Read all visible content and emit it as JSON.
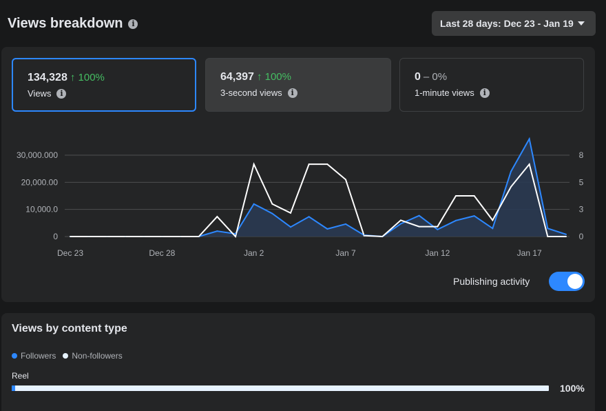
{
  "header": {
    "title": "Views breakdown",
    "date_range": "Last 28 days: Dec 23 - Jan 19"
  },
  "metrics": [
    {
      "value": "134,328",
      "change": "↑ 100%",
      "label": "Views"
    },
    {
      "value": "64,397",
      "change": "↑ 100%",
      "label": "3-second views"
    },
    {
      "value": "0",
      "change": "– 0%",
      "label": "1-minute views"
    }
  ],
  "chart_data": {
    "type": "line",
    "x_tick_labels": [
      "Dec 23",
      "Dec 28",
      "Jan 2",
      "Jan 7",
      "Jan 12",
      "Jan 17"
    ],
    "y_left_ticks": [
      "0",
      "10,000.0",
      "20,000.00",
      "30,000.000"
    ],
    "y_right_ticks": [
      "0",
      "3",
      "5",
      "8"
    ],
    "ylim_left": [
      0,
      30000
    ],
    "ylim_right": [
      0,
      9
    ],
    "x": [
      "Dec 23",
      "Dec 24",
      "Dec 25",
      "Dec 26",
      "Dec 27",
      "Dec 28",
      "Dec 29",
      "Dec 30",
      "Dec 31",
      "Jan 1",
      "Jan 2",
      "Jan 3",
      "Jan 4",
      "Jan 5",
      "Jan 6",
      "Jan 7",
      "Jan 8",
      "Jan 9",
      "Jan 10",
      "Jan 11",
      "Jan 12",
      "Jan 13",
      "Jan 14",
      "Jan 15",
      "Jan 16",
      "Jan 17",
      "Jan 18",
      "Jan 19"
    ],
    "series": [
      {
        "values": [
          0,
          0,
          0,
          0,
          0,
          0,
          0,
          0,
          2000,
          1000,
          12000,
          8500,
          3500,
          7300,
          2800,
          4600,
          500,
          0,
          4700,
          7700,
          2600,
          5900,
          7600,
          3000,
          24000,
          36000,
          3000,
          800
        ]
      },
      {
        "values": [
          0,
          0,
          0,
          0,
          0,
          0,
          0,
          0,
          2.2,
          0,
          8,
          3.6,
          2.6,
          8,
          8,
          6.3,
          0.1,
          0,
          1.8,
          1.1,
          1.1,
          4.5,
          4.5,
          1.8,
          5.5,
          8,
          0,
          0
        ]
      }
    ],
    "colors": {
      "followers": "#2d88ff",
      "non_followers": "#ffffff",
      "area": "#2a3a52"
    }
  },
  "publishing": {
    "label": "Publishing activity",
    "enabled": true
  },
  "content_type": {
    "title": "Views by content type",
    "legend": [
      {
        "label": "Followers",
        "color": "#2d88ff"
      },
      {
        "label": "Non-followers",
        "color": "#e7f3ff"
      }
    ],
    "rows": [
      {
        "label": "Reel",
        "followers_fraction": 0.006,
        "percent": "100%"
      }
    ]
  }
}
